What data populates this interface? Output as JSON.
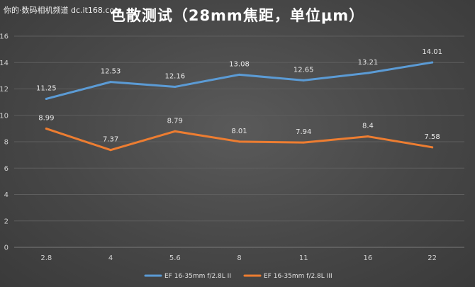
{
  "watermark": "你的·数码相机频道 dc.it168.com",
  "chart_data": {
    "type": "line",
    "title": "色散测试（28mm焦距，单位μm）",
    "categories": [
      "2.8",
      "4",
      "5.6",
      "8",
      "11",
      "16",
      "22"
    ],
    "ylim": [
      0,
      16
    ],
    "yticks": [
      0,
      2,
      4,
      6,
      8,
      10,
      12,
      14,
      16
    ],
    "grid": true,
    "legend_position": "bottom",
    "series": [
      {
        "name": "EF 16-35mm f/2.8L II",
        "color": "#5b9bd5",
        "values": [
          11.25,
          12.53,
          12.16,
          13.08,
          12.65,
          13.21,
          14.01
        ],
        "labels": [
          "11.25",
          "12.53",
          "12.16",
          "13.08",
          "12.65",
          "13.21",
          "14.01"
        ]
      },
      {
        "name": "EF 16-35mm f/2.8L III",
        "color": "#ed7d31",
        "values": [
          8.99,
          7.37,
          8.79,
          8.01,
          7.94,
          8.4,
          7.58
        ],
        "labels": [
          "8.99",
          "7.37",
          "8.79",
          "8.01",
          "7.94",
          "8.4",
          "7.58"
        ]
      }
    ]
  }
}
